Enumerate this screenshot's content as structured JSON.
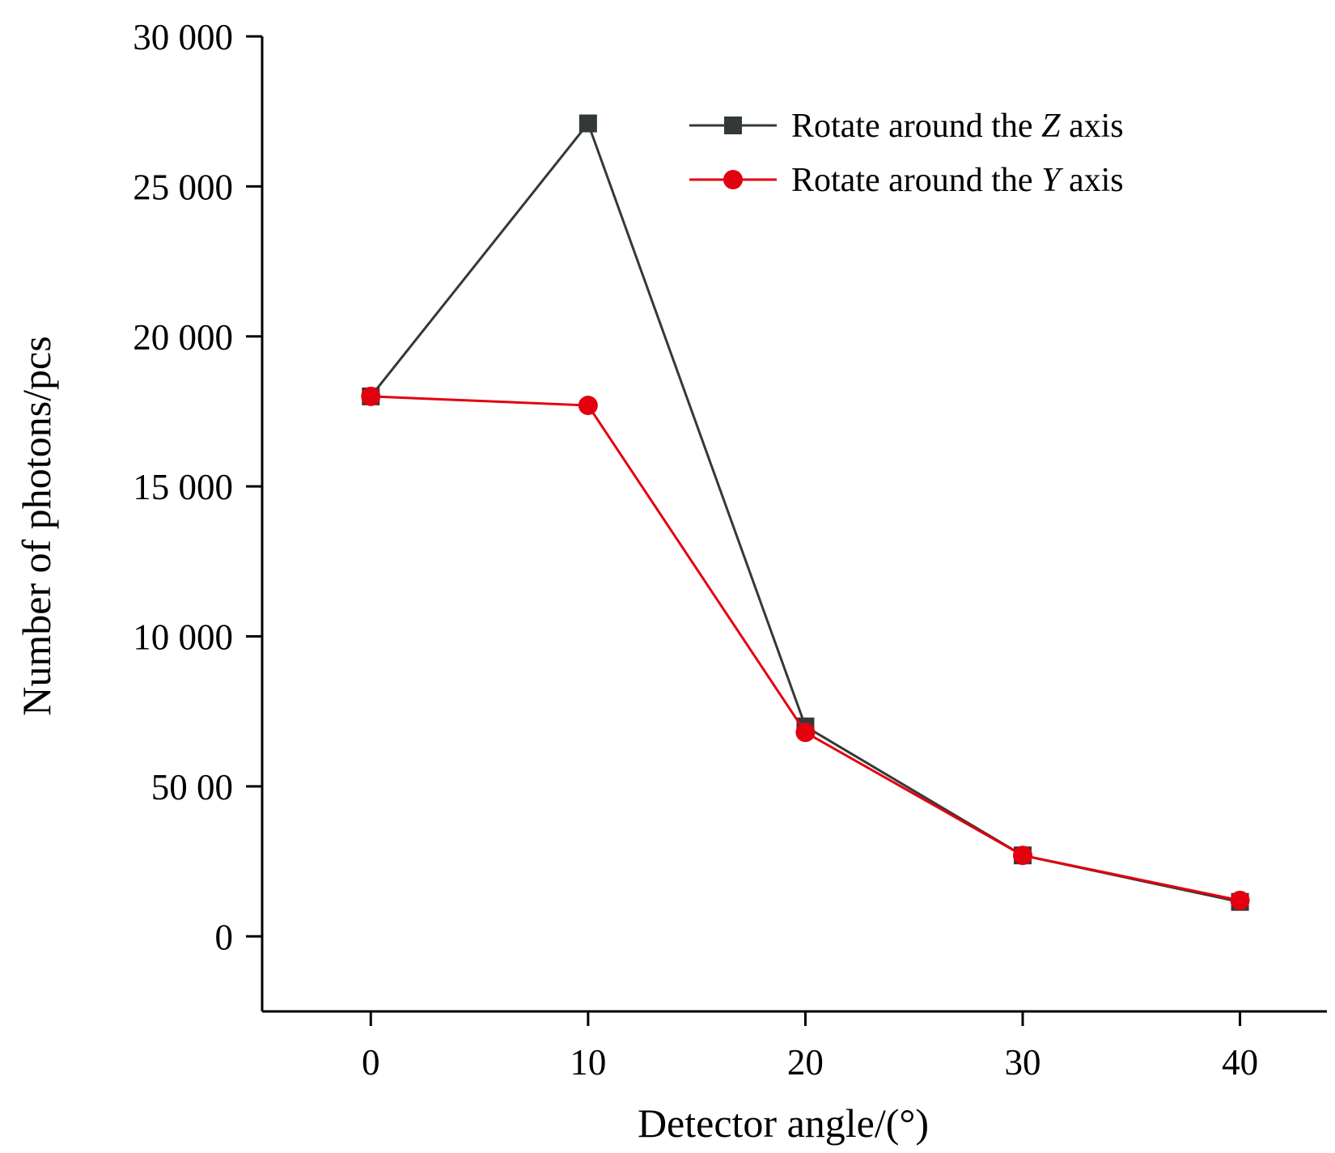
{
  "chart_data": {
    "type": "line",
    "title": "",
    "xlabel": "Detector angle/(°)",
    "ylabel": "Number of photons/pcs",
    "xlim": [
      -5,
      44
    ],
    "ylim": [
      -2500,
      30000
    ],
    "xticks": [
      0,
      10,
      20,
      30,
      40
    ],
    "xtick_labels": [
      "0",
      "10",
      "20",
      "30",
      "40"
    ],
    "yticks": [
      0,
      5000,
      10000,
      15000,
      20000,
      25000,
      30000
    ],
    "ytick_labels": [
      "0",
      "50 00",
      "10 000",
      "15 000",
      "20 000",
      "25 000",
      "30 000"
    ],
    "grid": false,
    "legend_position": "top-right",
    "x": [
      0,
      10,
      20,
      30,
      40
    ],
    "series": [
      {
        "name_prefix": "Rotate around the ",
        "name_var": "Z",
        "name_suffix": " axis",
        "color": "#333a36",
        "marker": "square",
        "values": [
          18000,
          27100,
          7000,
          2700,
          1150
        ]
      },
      {
        "name_prefix": "Rotate around the ",
        "name_var": "Y",
        "name_suffix": " axis",
        "color": "#e3000f",
        "marker": "circle",
        "values": [
          18000,
          17700,
          6800,
          2700,
          1200
        ]
      }
    ]
  }
}
